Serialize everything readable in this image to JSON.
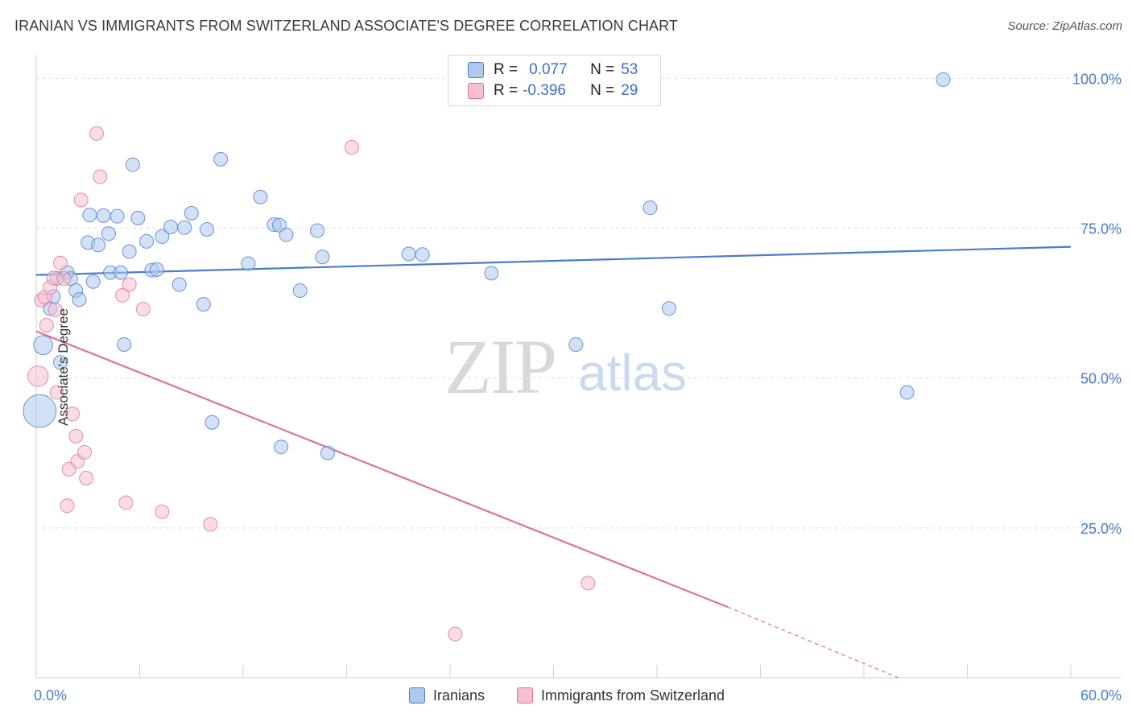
{
  "header": {
    "title": "IRANIAN VS IMMIGRANTS FROM SWITZERLAND ASSOCIATE'S DEGREE CORRELATION CHART",
    "source": "Source: ZipAtlas.com"
  },
  "watermark": {
    "zip": "ZIP",
    "atlas": "atlas"
  },
  "legend": {
    "rows": [
      {
        "r_label": "R =",
        "r_value": "0.077",
        "n_label": "N =",
        "n_value": "53",
        "color": "#aec8ee"
      },
      {
        "r_label": "R =",
        "r_value": "-0.396",
        "n_label": "N =",
        "n_value": "29",
        "color": "#f6bfd0"
      }
    ]
  },
  "bottom_legend": {
    "items": [
      {
        "label": "Iranians",
        "color": "#aec8ee"
      },
      {
        "label": "Immigrants from Switzerland",
        "color": "#f6bfd0"
      }
    ]
  },
  "chart_data": {
    "type": "scatter",
    "title": "IRANIAN VS IMMIGRANTS FROM SWITZERLAND ASSOCIATE'S DEGREE CORRELATION CHART",
    "xlabel": "",
    "ylabel": "Associate's Degree",
    "xlim": [
      0,
      60
    ],
    "ylim": [
      0,
      103
    ],
    "y_ticks": [
      {
        "value": 25,
        "label": "25.0%"
      },
      {
        "value": 50,
        "label": "50.0%"
      },
      {
        "value": 75,
        "label": "75.0%"
      },
      {
        "value": 100,
        "label": "100.0%"
      }
    ],
    "x_tick_labels": [
      {
        "value": 0,
        "label": "0.0%"
      },
      {
        "value": 60,
        "label": "60.0%"
      }
    ],
    "grid": true,
    "legend_position": "top-center",
    "series": [
      {
        "name": "Iranians",
        "color": "#4a7cc9",
        "fill": "#aec8ee",
        "trend": {
          "x": [
            0,
            60
          ],
          "y": [
            67.2,
            71.9
          ],
          "style": "solid"
        },
        "points": [
          {
            "x": 0.2,
            "y": 44.5,
            "s": 2.4
          },
          {
            "x": 0.4,
            "y": 55.5,
            "s": 1.4
          },
          {
            "x": 0.8,
            "y": 61.6,
            "s": 1
          },
          {
            "x": 1.0,
            "y": 63.6,
            "s": 1
          },
          {
            "x": 1.2,
            "y": 66.6,
            "s": 1
          },
          {
            "x": 1.4,
            "y": 52.6,
            "s": 1
          },
          {
            "x": 1.8,
            "y": 67.6,
            "s": 1
          },
          {
            "x": 2.0,
            "y": 66.6,
            "s": 1
          },
          {
            "x": 2.3,
            "y": 64.6,
            "s": 1
          },
          {
            "x": 2.5,
            "y": 63.1,
            "s": 1
          },
          {
            "x": 3.0,
            "y": 72.6,
            "s": 1
          },
          {
            "x": 3.1,
            "y": 77.2,
            "s": 1
          },
          {
            "x": 3.3,
            "y": 66.1,
            "s": 1
          },
          {
            "x": 3.6,
            "y": 72.2,
            "s": 1
          },
          {
            "x": 3.9,
            "y": 77.1,
            "s": 1
          },
          {
            "x": 4.2,
            "y": 74.1,
            "s": 1
          },
          {
            "x": 4.3,
            "y": 67.6,
            "s": 1
          },
          {
            "x": 4.7,
            "y": 77.0,
            "s": 1
          },
          {
            "x": 4.9,
            "y": 67.6,
            "s": 1
          },
          {
            "x": 5.1,
            "y": 55.6,
            "s": 1
          },
          {
            "x": 5.4,
            "y": 71.1,
            "s": 1
          },
          {
            "x": 5.6,
            "y": 85.6,
            "s": 1
          },
          {
            "x": 5.9,
            "y": 76.7,
            "s": 1
          },
          {
            "x": 6.4,
            "y": 72.8,
            "s": 1
          },
          {
            "x": 6.7,
            "y": 68.0,
            "s": 1
          },
          {
            "x": 7.0,
            "y": 68.1,
            "s": 1
          },
          {
            "x": 7.3,
            "y": 73.6,
            "s": 1
          },
          {
            "x": 7.8,
            "y": 75.2,
            "s": 1
          },
          {
            "x": 8.6,
            "y": 75.1,
            "s": 1
          },
          {
            "x": 8.3,
            "y": 65.6,
            "s": 1
          },
          {
            "x": 9.0,
            "y": 77.5,
            "s": 1
          },
          {
            "x": 9.7,
            "y": 62.3,
            "s": 1
          },
          {
            "x": 9.9,
            "y": 74.8,
            "s": 1
          },
          {
            "x": 10.2,
            "y": 42.6,
            "s": 1
          },
          {
            "x": 10.7,
            "y": 86.5,
            "s": 1
          },
          {
            "x": 12.3,
            "y": 69.1,
            "s": 1
          },
          {
            "x": 13.0,
            "y": 80.2,
            "s": 1
          },
          {
            "x": 13.8,
            "y": 75.6,
            "s": 1
          },
          {
            "x": 14.1,
            "y": 75.5,
            "s": 1
          },
          {
            "x": 14.2,
            "y": 38.5,
            "s": 1
          },
          {
            "x": 14.5,
            "y": 73.9,
            "s": 1
          },
          {
            "x": 15.3,
            "y": 64.6,
            "s": 1
          },
          {
            "x": 16.3,
            "y": 74.6,
            "s": 1
          },
          {
            "x": 16.6,
            "y": 70.2,
            "s": 1
          },
          {
            "x": 16.9,
            "y": 37.5,
            "s": 1
          },
          {
            "x": 21.6,
            "y": 70.7,
            "s": 1
          },
          {
            "x": 22.4,
            "y": 70.6,
            "s": 1
          },
          {
            "x": 26.4,
            "y": 67.5,
            "s": 1
          },
          {
            "x": 31.3,
            "y": 55.6,
            "s": 1
          },
          {
            "x": 35.6,
            "y": 78.4,
            "s": 1
          },
          {
            "x": 36.7,
            "y": 61.6,
            "s": 1
          },
          {
            "x": 50.5,
            "y": 47.6,
            "s": 1
          },
          {
            "x": 52.6,
            "y": 99.8,
            "s": 1
          }
        ]
      },
      {
        "name": "Immigrants from Switzerland",
        "color": "#e0709a",
        "fill": "#f6bfd0",
        "trend": {
          "x": [
            0,
            40.1,
            50
          ],
          "y": [
            57.8,
            11.8,
            0
          ],
          "style": "solid-then-dashed"
        },
        "points": [
          {
            "x": 0.1,
            "y": 50.3,
            "s": 1.5
          },
          {
            "x": 0.3,
            "y": 63.0,
            "s": 1
          },
          {
            "x": 0.5,
            "y": 63.5,
            "s": 1
          },
          {
            "x": 0.6,
            "y": 58.8,
            "s": 1
          },
          {
            "x": 0.8,
            "y": 65.1,
            "s": 1
          },
          {
            "x": 1.0,
            "y": 66.7,
            "s": 1
          },
          {
            "x": 1.1,
            "y": 61.4,
            "s": 1
          },
          {
            "x": 1.2,
            "y": 47.6,
            "s": 1
          },
          {
            "x": 1.4,
            "y": 69.2,
            "s": 1
          },
          {
            "x": 1.6,
            "y": 66.6,
            "s": 1
          },
          {
            "x": 1.8,
            "y": 28.7,
            "s": 1
          },
          {
            "x": 1.9,
            "y": 34.8,
            "s": 1
          },
          {
            "x": 2.1,
            "y": 44.0,
            "s": 1
          },
          {
            "x": 2.3,
            "y": 40.3,
            "s": 1
          },
          {
            "x": 2.4,
            "y": 36.1,
            "s": 1
          },
          {
            "x": 2.6,
            "y": 79.7,
            "s": 1
          },
          {
            "x": 2.8,
            "y": 37.6,
            "s": 1
          },
          {
            "x": 2.9,
            "y": 33.3,
            "s": 1
          },
          {
            "x": 3.5,
            "y": 90.8,
            "s": 1
          },
          {
            "x": 3.7,
            "y": 83.6,
            "s": 1
          },
          {
            "x": 5.0,
            "y": 63.8,
            "s": 1
          },
          {
            "x": 5.2,
            "y": 29.2,
            "s": 1
          },
          {
            "x": 5.4,
            "y": 65.6,
            "s": 1
          },
          {
            "x": 6.2,
            "y": 61.5,
            "s": 1
          },
          {
            "x": 7.3,
            "y": 27.7,
            "s": 1
          },
          {
            "x": 10.1,
            "y": 25.6,
            "s": 1
          },
          {
            "x": 18.3,
            "y": 88.5,
            "s": 1
          },
          {
            "x": 24.3,
            "y": 7.3,
            "s": 1
          },
          {
            "x": 32.0,
            "y": 15.8,
            "s": 1
          }
        ]
      }
    ]
  }
}
